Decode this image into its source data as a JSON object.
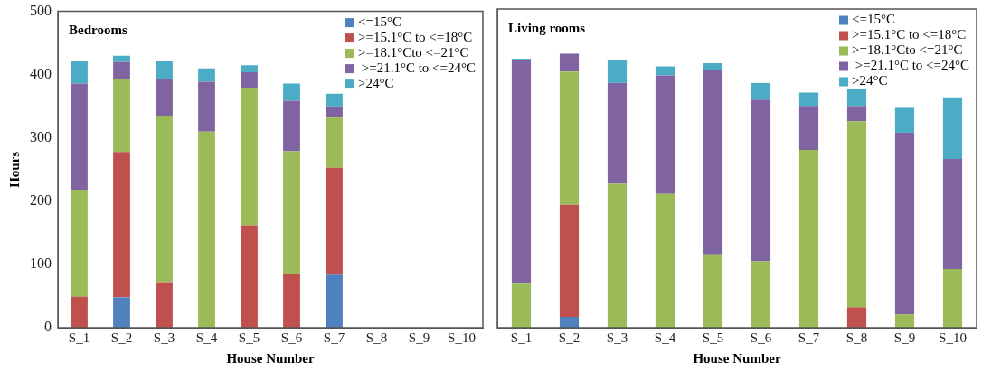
{
  "chart_data": [
    {
      "type": "bar",
      "stacked": true,
      "title": "Bedrooms",
      "xlabel": "House Number",
      "ylabel": "Hours",
      "legend": "top right",
      "ylim": [
        0,
        500
      ],
      "yticks": [
        0,
        100,
        200,
        300,
        400,
        500
      ],
      "categories": [
        "S_1",
        "S_2",
        "S_3",
        "S_4",
        "S_5",
        "S_6",
        "S_7",
        "S_8",
        "S_9",
        "S_10"
      ],
      "series": [
        {
          "name": "<=15°C",
          "color": "#4f81bd",
          "values": [
            0,
            48,
            0,
            0,
            0,
            0,
            84,
            null,
            null,
            null
          ]
        },
        {
          "name": ">=15.1°C to <=18°C",
          "color": "#c0504d",
          "values": [
            49,
            230,
            72,
            0,
            162,
            85,
            169,
            null,
            null,
            null
          ]
        },
        {
          "name": ">=18.1°Cto <=21°C",
          "color": "#9bbb59",
          "values": [
            169,
            116,
            262,
            310,
            216,
            194,
            79,
            null,
            null,
            null
          ]
        },
        {
          "name": " >=21.1°C to <=24°C",
          "color": "#8064a2",
          "values": [
            168,
            26,
            59,
            79,
            26,
            80,
            18,
            null,
            null,
            null
          ]
        },
        {
          "name": ">24°C",
          "color": "#4bacc6",
          "values": [
            35,
            10,
            28,
            21,
            11,
            27,
            20,
            null,
            null,
            null
          ]
        }
      ]
    },
    {
      "type": "bar",
      "stacked": true,
      "title": "Living rooms",
      "xlabel": "House Number",
      "legend": "top right",
      "tick_labels": "x",
      "ylim": [
        0,
        500
      ],
      "yticks": [
        0,
        100,
        200,
        300,
        400,
        500
      ],
      "categories": [
        "S_1",
        "S_2",
        "S_3",
        "S_4",
        "S_5",
        "S_6",
        "S_7",
        "S_8",
        "S_9",
        "S_10"
      ],
      "series": [
        {
          "name": "<=15°C",
          "color": "#4f81bd",
          "values": [
            0,
            17,
            0,
            0,
            0,
            0,
            0,
            0,
            0,
            0
          ]
        },
        {
          "name": ">=15.1°C to <=18°C",
          "color": "#c0504d",
          "values": [
            0,
            176,
            0,
            0,
            0,
            0,
            0,
            32,
            0,
            0
          ]
        },
        {
          "name": ">=18.1°Cto <=21°C",
          "color": "#9bbb59",
          "values": [
            69,
            209,
            226,
            210,
            115,
            104,
            279,
            292,
            21,
            92
          ]
        },
        {
          "name": " >=21.1°C to <=24°C",
          "color": "#8064a2",
          "values": [
            351,
            28,
            158,
            186,
            290,
            254,
            69,
            24,
            285,
            173
          ]
        },
        {
          "name": ">24°C",
          "color": "#4bacc6",
          "values": [
            2,
            0,
            36,
            14,
            10,
            26,
            21,
            26,
            39,
            95
          ]
        }
      ]
    }
  ]
}
